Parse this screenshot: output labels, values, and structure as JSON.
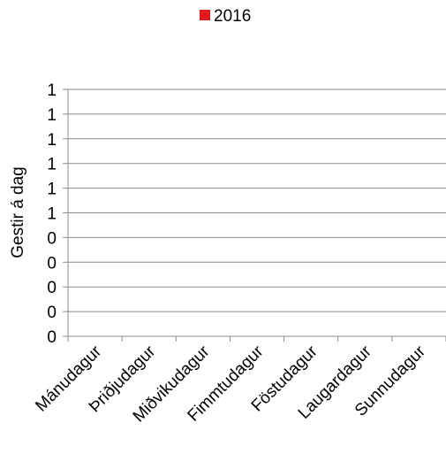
{
  "chart_data": {
    "type": "bar",
    "categories": [
      "Mánudagur",
      "Þriðjudagur",
      "Miðvikudagur",
      "Fimmtudagur",
      "Föstudagur",
      "Laugardagur",
      "Sunnudagur"
    ],
    "series": [
      {
        "name": "2016",
        "values": [
          0,
          0,
          0,
          0,
          0,
          0,
          0
        ],
        "color": "#e31a1c"
      }
    ],
    "ylabel": "Gestir á dag",
    "ylim": [
      0,
      1
    ],
    "y_tick_labels": [
      "0",
      "0",
      "0",
      "0",
      "0",
      "1",
      "1",
      "1",
      "1",
      "1",
      "1"
    ],
    "grid": true,
    "legend_position": "top",
    "colors": {
      "grid": "#8c8c8c",
      "text": "#000000"
    }
  }
}
